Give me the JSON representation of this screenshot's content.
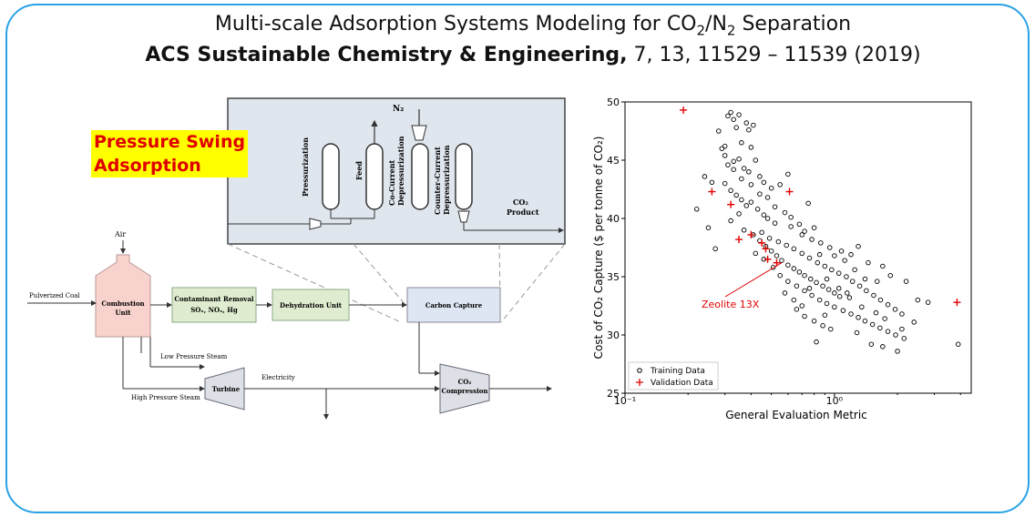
{
  "title": {
    "line1_pre": "Multi-scale Adsorption Systems Modeling for CO",
    "line1_sub1": "2",
    "line1_mid": "/N",
    "line1_sub2": "2",
    "line1_post": " Separation",
    "line2_bold": "ACS Sustainable Chemistry & Engineering,",
    "line2_rest": " 7, 13, 11529 – 11539 (2019)"
  },
  "highlight": {
    "line1": "Pressure Swing",
    "line2": "Adsorption"
  },
  "psa_inset": {
    "n2": "N₂",
    "steps": [
      "Pressurization",
      "Feed",
      "Co-Current Depressurization",
      "Counter-Current Depressurization"
    ],
    "co2_label": "CO₂",
    "product_label": "Product"
  },
  "flowsheet": {
    "air": "Air",
    "pulverized_coal": "Pulverized Coal",
    "combustion_unit": "Combustion Unit",
    "contaminant_removal": "Contaminant Removal",
    "contaminants": "SOₓ, NOₓ, Hg",
    "dehydration_unit": "Dehydration Unit",
    "carbon_capture": "Carbon Capture",
    "low_pressure_steam": "Low Pressure Steam",
    "high_pressure_steam": "High Pressure Steam",
    "turbine": "Turbine",
    "electricity": "Electricity",
    "co2_compression_1": "CO₂",
    "co2_compression_2": "Compression"
  },
  "colors": {
    "frame": "#29a3e6",
    "highlight_bg": "#ffff00",
    "highlight_text": "#e00000",
    "inset_bg": "#dfe6ee",
    "combustion_fill": "#f8d2cc",
    "green_fill": "#dfeccf",
    "capture_fill": "#dde6f2",
    "validation": "#e00000"
  },
  "chart_data": {
    "type": "scatter",
    "xlabel": "General Evaluation Metric",
    "ylabel": "Cost of CO₂ Capture ($ per tonne of CO₂)",
    "xscale": "log",
    "xlim": [
      0.1,
      4.5
    ],
    "ylim": [
      25,
      50
    ],
    "yticks": [
      25,
      30,
      35,
      40,
      45,
      50
    ],
    "xtick_labels": [
      "10⁻¹",
      "10⁰"
    ],
    "legend": {
      "position": "bottom-left",
      "entries": [
        "Training Data",
        "Validation Data"
      ]
    },
    "annotation": {
      "text": "Zeolite 13X",
      "x": 0.56,
      "y": 36.2
    },
    "series": [
      {
        "name": "Training Data",
        "marker": "circle",
        "points": [
          [
            0.28,
            47.5
          ],
          [
            0.3,
            46.2
          ],
          [
            0.31,
            48.8
          ],
          [
            0.32,
            49.1
          ],
          [
            0.33,
            48.5
          ],
          [
            0.34,
            47.8
          ],
          [
            0.35,
            48.9
          ],
          [
            0.36,
            46.5
          ],
          [
            0.38,
            48.2
          ],
          [
            0.39,
            47.6
          ],
          [
            0.4,
            46.1
          ],
          [
            0.41,
            48.0
          ],
          [
            0.29,
            46.0
          ],
          [
            0.3,
            45.4
          ],
          [
            0.33,
            44.9
          ],
          [
            0.35,
            45.1
          ],
          [
            0.37,
            44.3
          ],
          [
            0.39,
            44.0
          ],
          [
            0.42,
            45.0
          ],
          [
            0.44,
            43.6
          ],
          [
            0.46,
            43.1
          ],
          [
            0.5,
            42.6
          ],
          [
            0.55,
            42.9
          ],
          [
            0.6,
            43.8
          ],
          [
            0.24,
            43.6
          ],
          [
            0.26,
            43.1
          ],
          [
            0.3,
            43.0
          ],
          [
            0.32,
            42.4
          ],
          [
            0.34,
            42.0
          ],
          [
            0.36,
            41.6
          ],
          [
            0.38,
            41.1
          ],
          [
            0.4,
            41.4
          ],
          [
            0.43,
            40.8
          ],
          [
            0.46,
            40.3
          ],
          [
            0.48,
            40.0
          ],
          [
            0.52,
            41.0
          ],
          [
            0.58,
            40.5
          ],
          [
            0.62,
            40.1
          ],
          [
            0.68,
            39.5
          ],
          [
            0.72,
            38.9
          ],
          [
            0.75,
            41.3
          ],
          [
            0.8,
            39.2
          ],
          [
            0.22,
            40.8
          ],
          [
            0.25,
            39.2
          ],
          [
            0.27,
            37.4
          ],
          [
            0.32,
            39.8
          ],
          [
            0.35,
            40.4
          ],
          [
            0.37,
            39.0
          ],
          [
            0.41,
            38.6
          ],
          [
            0.44,
            38.1
          ],
          [
            0.47,
            37.6
          ],
          [
            0.5,
            37.2
          ],
          [
            0.53,
            36.8
          ],
          [
            0.56,
            36.4
          ],
          [
            0.6,
            36.0
          ],
          [
            0.64,
            35.7
          ],
          [
            0.68,
            35.4
          ],
          [
            0.72,
            35.1
          ],
          [
            0.77,
            34.8
          ],
          [
            0.82,
            34.5
          ],
          [
            0.88,
            34.2
          ],
          [
            0.94,
            33.9
          ],
          [
            1.0,
            33.6
          ],
          [
            1.06,
            33.3
          ],
          [
            0.45,
            38.8
          ],
          [
            0.49,
            38.3
          ],
          [
            0.54,
            38.0
          ],
          [
            0.59,
            37.7
          ],
          [
            0.64,
            37.4
          ],
          [
            0.7,
            37.0
          ],
          [
            0.76,
            36.6
          ],
          [
            0.83,
            36.2
          ],
          [
            0.9,
            35.9
          ],
          [
            0.97,
            35.6
          ],
          [
            1.05,
            35.3
          ],
          [
            1.14,
            35.0
          ],
          [
            1.22,
            34.6
          ],
          [
            1.32,
            34.2
          ],
          [
            1.42,
            33.8
          ],
          [
            1.54,
            33.4
          ],
          [
            1.66,
            33.0
          ],
          [
            1.8,
            32.6
          ],
          [
            1.95,
            32.2
          ],
          [
            2.1,
            31.8
          ],
          [
            0.55,
            35.1
          ],
          [
            0.6,
            34.6
          ],
          [
            0.66,
            34.2
          ],
          [
            0.72,
            33.8
          ],
          [
            0.78,
            33.4
          ],
          [
            0.85,
            33.0
          ],
          [
            0.92,
            32.7
          ],
          [
            1.0,
            32.4
          ],
          [
            1.1,
            32.1
          ],
          [
            1.2,
            31.8
          ],
          [
            1.3,
            31.5
          ],
          [
            1.4,
            31.2
          ],
          [
            1.52,
            30.9
          ],
          [
            1.65,
            30.6
          ],
          [
            1.8,
            30.3
          ],
          [
            1.96,
            30.0
          ],
          [
            2.15,
            29.7
          ],
          [
            0.66,
            32.2
          ],
          [
            0.72,
            31.6
          ],
          [
            0.8,
            31.2
          ],
          [
            0.88,
            30.8
          ],
          [
            1.0,
            36.8
          ],
          [
            1.12,
            36.4
          ],
          [
            1.25,
            35.6
          ],
          [
            1.4,
            34.8
          ],
          [
            1.6,
            34.6
          ],
          [
            1.85,
            35.1
          ],
          [
            2.2,
            34.6
          ],
          [
            2.5,
            33.0
          ],
          [
            2.8,
            32.8
          ],
          [
            1.15,
            33.6
          ],
          [
            1.35,
            32.4
          ],
          [
            1.58,
            31.9
          ],
          [
            1.74,
            31.4
          ],
          [
            2.0,
            28.6
          ],
          [
            0.82,
            29.4
          ],
          [
            1.5,
            29.2
          ],
          [
            1.7,
            29.0
          ],
          [
            2.1,
            30.5
          ],
          [
            2.4,
            31.1
          ],
          [
            3.9,
            29.2
          ],
          [
            0.7,
            38.6
          ],
          [
            0.78,
            38.2
          ],
          [
            0.86,
            37.9
          ],
          [
            0.95,
            37.5
          ],
          [
            1.08,
            37.2
          ],
          [
            1.2,
            36.9
          ],
          [
            0.62,
            39.3
          ],
          [
            0.52,
            39.6
          ],
          [
            0.48,
            41.8
          ],
          [
            0.44,
            42.1
          ],
          [
            0.4,
            42.9
          ],
          [
            0.36,
            43.4
          ],
          [
            0.33,
            44.2
          ],
          [
            0.31,
            44.6
          ],
          [
            0.58,
            33.6
          ],
          [
            0.64,
            33.0
          ],
          [
            0.7,
            32.5
          ],
          [
            0.76,
            34.0
          ],
          [
            0.9,
            31.7
          ],
          [
            1.3,
            37.6
          ],
          [
            1.45,
            36.2
          ],
          [
            1.7,
            35.9
          ],
          [
            0.85,
            36.9
          ],
          [
            0.92,
            34.8
          ],
          [
            1.05,
            34.0
          ],
          [
            1.18,
            33.2
          ],
          [
            1.28,
            30.2
          ],
          [
            0.96,
            30.5
          ],
          [
            0.42,
            37.0
          ],
          [
            0.46,
            36.5
          ],
          [
            0.51,
            35.8
          ]
        ]
      },
      {
        "name": "Validation Data",
        "marker": "plus",
        "points": [
          [
            0.19,
            49.3
          ],
          [
            0.26,
            42.3
          ],
          [
            0.32,
            41.2
          ],
          [
            0.35,
            38.2
          ],
          [
            0.4,
            38.6
          ],
          [
            0.45,
            37.9
          ],
          [
            0.47,
            37.4
          ],
          [
            0.48,
            36.5
          ],
          [
            0.53,
            36.2
          ],
          [
            0.61,
            42.3
          ],
          [
            3.85,
            32.8
          ]
        ]
      }
    ]
  }
}
